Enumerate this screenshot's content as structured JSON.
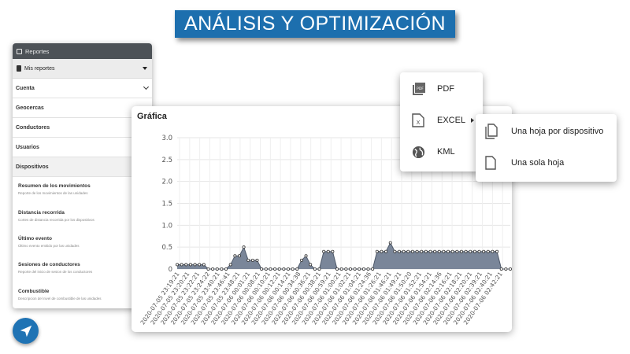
{
  "banner": {
    "title": "ANÁLISIS Y OPTIMIZACIÓN"
  },
  "sidebar": {
    "header": "Reportes",
    "selector": "Mis reportes",
    "sections": [
      "Cuenta",
      "Geocercas",
      "Conductores",
      "Usuarios",
      "Dispositivos"
    ],
    "reports": [
      {
        "title": "Resumen de los movimientos",
        "desc": "Reporte de los movimientos de las unidades"
      },
      {
        "title": "Distancia recorrida",
        "desc": "Cortes de distancia recorrida por los dispositivos"
      },
      {
        "title": "Último evento",
        "desc": "Último evento emitido por las unidades"
      },
      {
        "title": "Sesiones de conductores",
        "desc": "Reporte del inicio de sesion de los conductores"
      },
      {
        "title": "Combustible",
        "desc": "Descripcion del nivel de combustible de las unidades"
      }
    ]
  },
  "chart": {
    "title": "Gráfica",
    "fill_color": "#7a8699",
    "line_color": "#4f5a6b"
  },
  "chart_data": {
    "type": "area",
    "ylim": [
      0,
      3.0
    ],
    "yticks": [
      "0",
      "0.5",
      "1.0",
      "1.5",
      "2.0",
      "2.5",
      "3.0"
    ],
    "values": [
      0.1,
      0.1,
      0.1,
      0.1,
      0.1,
      0.1,
      0.1,
      0,
      0,
      0,
      0,
      0,
      0.1,
      0.3,
      0.3,
      0.5,
      0.2,
      0.2,
      0.2,
      0,
      0,
      0,
      0,
      0,
      0,
      0,
      0,
      0,
      0.2,
      0.3,
      0.1,
      0,
      0,
      0.4,
      0.4,
      0.4,
      0,
      0,
      0,
      0,
      0,
      0,
      0,
      0,
      0,
      0.4,
      0.4,
      0.4,
      0.6,
      0.4,
      0.4,
      0.4,
      0.4,
      0.4,
      0.4,
      0.4,
      0.4,
      0.4,
      0.4,
      0.4,
      0.4,
      0.4,
      0.4,
      0.4,
      0.4,
      0.4,
      0.4,
      0.4,
      0.4,
      0.4,
      0.4,
      0.4,
      0.4,
      0,
      0,
      0
    ],
    "xticks": [
      "2020-07-05 23:19:21",
      "2020-07-05 23:20:21",
      "2020-07-05 23:22:21",
      "2020-07-05 23:24:22",
      "2020-07-05 23:40:21",
      "2020-07-05 23:46:41",
      "2020-07-05 23:48:21",
      "2020-07-06 00:01:21",
      "2020-07-06 00:08:21",
      "2020-07-06 00:10:21",
      "2020-07-06 00:12:21",
      "2020-07-06 00:14:21",
      "2020-07-06 00:34:38",
      "2020-07-06 00:36:21",
      "2020-07-06 00:38:21",
      "2020-07-06 00:59:21",
      "2020-07-06 01:00:21",
      "2020-07-06 01:02:21",
      "2020-07-06 01:04:21",
      "2020-07-06 01:24:36",
      "2020-07-06 01:26:21",
      "2020-07-06 01:46:21",
      "2020-07-06 01:49:21",
      "2020-07-06 01:50:20",
      "2020-07-06 01:52:21",
      "2020-07-06 01:54:21",
      "2020-07-06 02:14:36",
      "2020-07-06 02:16:21",
      "2020-07-06 02:18:21",
      "2020-07-06 02:20:21",
      "2020-07-06 02:39:21",
      "2020-07-06 02:40:21",
      "2020-07-06 02:42:21"
    ]
  },
  "export_menu": {
    "items": [
      {
        "label": "PDF",
        "icon": "pdf-icon"
      },
      {
        "label": "EXCEL",
        "icon": "excel-icon"
      },
      {
        "label": "KML",
        "icon": "globe-icon"
      }
    ],
    "excel_submenu": [
      {
        "label": "Una hoja por dispositivo",
        "icon": "multi-page-icon"
      },
      {
        "label": "Una sola hoja",
        "icon": "page-icon"
      }
    ]
  }
}
